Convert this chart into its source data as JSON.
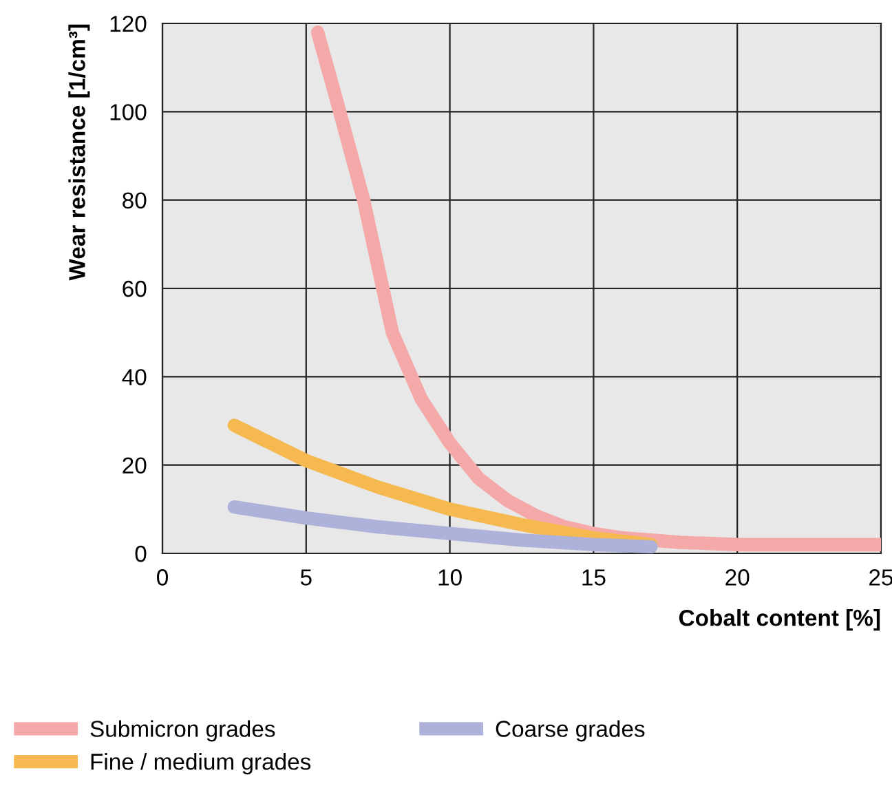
{
  "chart_data": {
    "type": "line",
    "xlabel": "Cobalt content [%]",
    "ylabel": "Wear resistance [1/cm³]",
    "xlim": [
      0,
      25
    ],
    "ylim": [
      0,
      120
    ],
    "xticks": [
      0,
      5,
      10,
      15,
      20,
      25
    ],
    "yticks": [
      0,
      20,
      40,
      60,
      80,
      100,
      120
    ],
    "grid": true,
    "legend": "bottom",
    "marker": "none",
    "line_style": "solid",
    "series": [
      {
        "name": "Submicron grades",
        "color": "#f4a9a8",
        "x": [
          5.4,
          6,
          7,
          8,
          9,
          10,
          11,
          12,
          13,
          14,
          15,
          16,
          18,
          20,
          22,
          25
        ],
        "values": [
          118,
          104,
          80,
          50,
          35,
          25,
          17,
          12,
          8.5,
          6,
          4.5,
          3.5,
          2.5,
          2,
          2,
          2
        ]
      },
      {
        "name": "Fine / medium grades",
        "color": "#f5b94f",
        "x": [
          2.5,
          5,
          7.5,
          10,
          12.5,
          15,
          17
        ],
        "values": [
          29,
          21,
          15,
          10,
          6.5,
          3.5,
          2
        ]
      },
      {
        "name": "Coarse grades",
        "color": "#aeb1d9",
        "x": [
          2.5,
          5,
          7.5,
          10,
          12.5,
          15,
          17
        ],
        "values": [
          10.5,
          8,
          6,
          4.5,
          3,
          2,
          1.5
        ]
      }
    ]
  }
}
